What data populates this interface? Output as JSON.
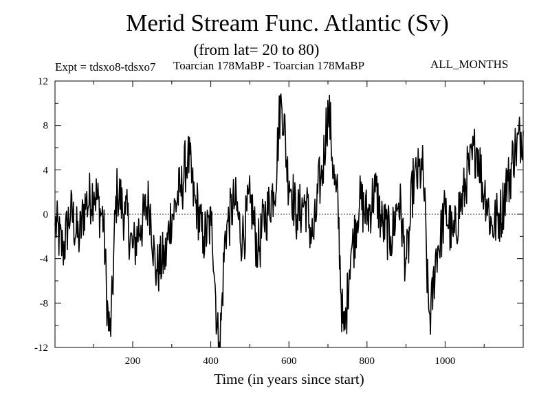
{
  "chart_data": {
    "type": "line",
    "title": "Merid Stream Func. Atlantic (Sv)",
    "subtitle": "(from lat= 20 to 80)",
    "experiment": "Expt = tdsxo8-tdsxo7",
    "description": "Toarcian 178MaBP - Toarcian 178MaBP",
    "period": "ALL_MONTHS",
    "xlabel": "Time (in years since start)",
    "ylabel": "",
    "xlim": [
      1,
      1200
    ],
    "ylim": [
      -12,
      12
    ],
    "x_ticks": [
      200,
      400,
      600,
      800,
      1000
    ],
    "y_ticks": [
      -12,
      -8,
      -4,
      0,
      4,
      8,
      12
    ],
    "zero_line": true,
    "series": [
      {
        "x": [
          1,
          21,
          41,
          61,
          81,
          101,
          121,
          141,
          161,
          181,
          201,
          221,
          241,
          261,
          281,
          301,
          321,
          341,
          361,
          381,
          401,
          421,
          441,
          461,
          481,
          501,
          521,
          541,
          561,
          581,
          601,
          621,
          641,
          661,
          681,
          701,
          721,
          741,
          761,
          781,
          801,
          821,
          841,
          861,
          881,
          901,
          921,
          941,
          961,
          981,
          1001,
          1021,
          1041,
          1061,
          1081,
          1101,
          1121,
          1141,
          1161,
          1181,
          1200
        ],
        "values": [
          -1,
          -3,
          0,
          -2,
          1,
          2,
          0,
          -10.5,
          2,
          0,
          -3,
          -1,
          1,
          -5,
          -4,
          0,
          2,
          5,
          1,
          -2,
          -1,
          -11.5,
          -1,
          1,
          -2,
          1,
          -3,
          0,
          2,
          10,
          3,
          0,
          1,
          -2,
          3,
          9,
          2,
          -10.5,
          -3,
          1,
          0,
          2,
          -1,
          -2,
          1,
          -4,
          3,
          4,
          -9,
          -3,
          0,
          -2,
          1,
          4,
          6,
          2,
          -1,
          0,
          3,
          6,
          7.5
        ],
        "color": "#000000"
      }
    ]
  }
}
